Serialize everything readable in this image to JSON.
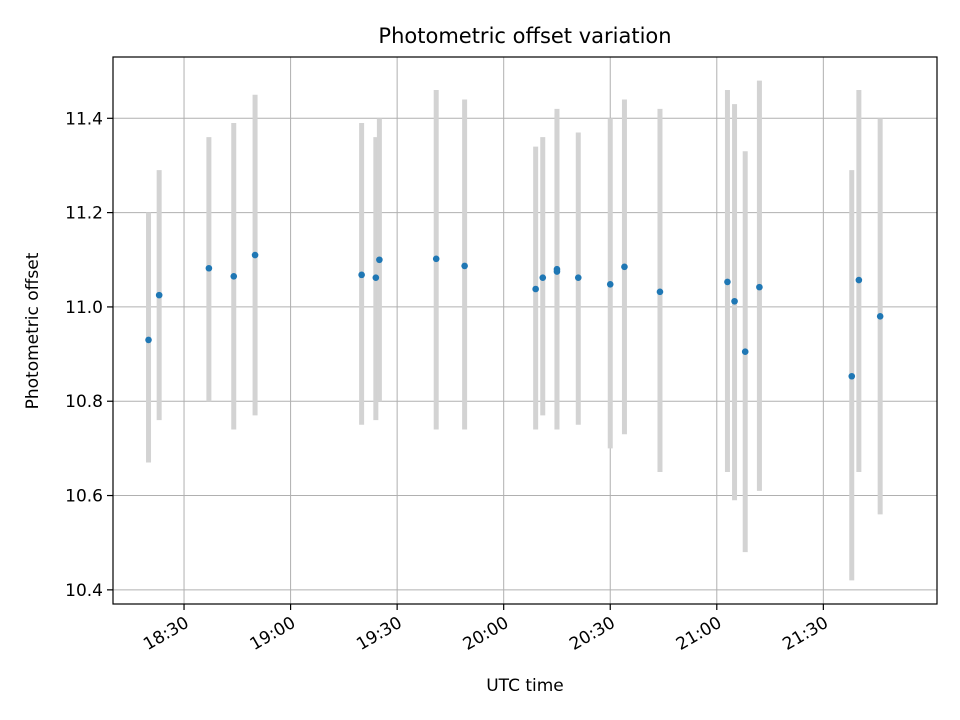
{
  "chart_data": {
    "type": "scatter",
    "title": "Photometric offset variation",
    "xlabel": "UTC time",
    "ylabel": "Photometric offset",
    "xlim": [
      "18:10",
      "22:02"
    ],
    "ylim": [
      10.37,
      11.53
    ],
    "x_ticks": [
      "18:30",
      "19:00",
      "19:30",
      "20:00",
      "20:30",
      "21:00",
      "21:30"
    ],
    "y_ticks": [
      "10.4",
      "10.6",
      "10.8",
      "11.0",
      "11.2",
      "11.4"
    ],
    "grid": true,
    "colors": {
      "point": "#1f77b4",
      "errorbar": "#d3d3d3",
      "grid": "#b0b0b0"
    },
    "points": [
      {
        "x": "18:20",
        "y": 10.93,
        "low": 10.67,
        "high": 11.2
      },
      {
        "x": "18:23",
        "y": 11.025,
        "low": 10.76,
        "high": 11.29
      },
      {
        "x": "18:37",
        "y": 11.082,
        "low": 10.8,
        "high": 11.36
      },
      {
        "x": "18:44",
        "y": 11.065,
        "low": 10.74,
        "high": 11.39
      },
      {
        "x": "18:50",
        "y": 11.11,
        "low": 10.77,
        "high": 11.45
      },
      {
        "x": "19:20",
        "y": 11.068,
        "low": 10.75,
        "high": 11.39
      },
      {
        "x": "19:24",
        "y": 11.062,
        "low": 10.76,
        "high": 11.36
      },
      {
        "x": "19:25",
        "y": 11.1,
        "low": 10.8,
        "high": 11.4
      },
      {
        "x": "19:41",
        "y": 11.102,
        "low": 10.74,
        "high": 11.46
      },
      {
        "x": "19:49",
        "y": 11.087,
        "low": 10.74,
        "high": 11.44
      },
      {
        "x": "20:09",
        "y": 11.038,
        "low": 10.74,
        "high": 11.34
      },
      {
        "x": "20:11",
        "y": 11.062,
        "low": 10.77,
        "high": 11.36
      },
      {
        "x": "20:15",
        "y": 11.08,
        "low": 10.74,
        "high": 11.42
      },
      {
        "x": "20:15",
        "y": 11.075,
        "low": 10.74,
        "high": 11.41
      },
      {
        "x": "20:21",
        "y": 11.062,
        "low": 10.75,
        "high": 11.37
      },
      {
        "x": "20:30",
        "y": 11.048,
        "low": 10.7,
        "high": 11.4
      },
      {
        "x": "20:34",
        "y": 11.085,
        "low": 10.73,
        "high": 11.44
      },
      {
        "x": "20:44",
        "y": 11.032,
        "low": 10.65,
        "high": 11.42
      },
      {
        "x": "21:03",
        "y": 11.053,
        "low": 10.65,
        "high": 11.46
      },
      {
        "x": "21:05",
        "y": 11.012,
        "low": 10.59,
        "high": 11.43
      },
      {
        "x": "21:08",
        "y": 10.905,
        "low": 10.48,
        "high": 11.33
      },
      {
        "x": "21:12",
        "y": 11.042,
        "low": 10.61,
        "high": 11.48
      },
      {
        "x": "21:38",
        "y": 10.853,
        "low": 10.42,
        "high": 11.29
      },
      {
        "x": "21:40",
        "y": 11.057,
        "low": 10.65,
        "high": 11.46
      },
      {
        "x": "21:46",
        "y": 10.98,
        "low": 10.56,
        "high": 11.4
      }
    ]
  }
}
